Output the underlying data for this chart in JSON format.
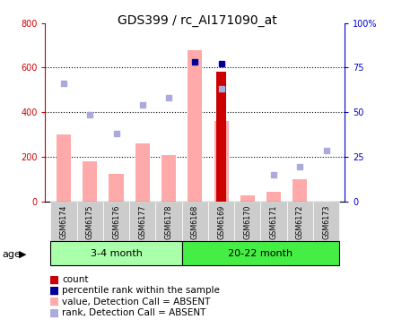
{
  "title": "GDS399 / rc_AI171090_at",
  "samples": [
    "GSM6174",
    "GSM6175",
    "GSM6176",
    "GSM6177",
    "GSM6178",
    "GSM6168",
    "GSM6169",
    "GSM6170",
    "GSM6171",
    "GSM6172",
    "GSM6173"
  ],
  "value_absent": [
    300,
    180,
    125,
    260,
    210,
    680,
    360,
    30,
    45,
    100,
    null
  ],
  "rank_absent_left_scale": [
    530,
    390,
    305,
    435,
    465,
    null,
    505,
    null,
    120,
    155,
    230
  ],
  "count_bar_val": [
    null,
    null,
    null,
    null,
    null,
    null,
    580,
    null,
    null,
    null,
    null
  ],
  "percentile_bar_val": [
    null,
    null,
    null,
    null,
    null,
    680,
    null,
    null,
    null,
    null,
    null
  ],
  "count_marker_left": [
    null,
    null,
    null,
    null,
    null,
    null,
    620,
    null,
    null,
    null,
    null
  ],
  "percentile_marker_left": [
    null,
    null,
    null,
    null,
    null,
    625,
    null,
    null,
    null,
    null,
    null
  ],
  "ylim_left": [
    0,
    800
  ],
  "ylim_right": [
    0,
    100
  ],
  "yticks_left": [
    0,
    200,
    400,
    600,
    800
  ],
  "yticks_right": [
    0,
    25,
    50,
    75,
    100
  ],
  "yticklabels_right": [
    "0",
    "25",
    "50",
    "75",
    "100%"
  ],
  "color_count_bar": "#cc0000",
  "color_rank_absent": "#aaaadd",
  "color_value_absent": "#ffaaaa",
  "color_percentile_marker": "#000099",
  "bg_plot": "#ffffff",
  "bg_sample_label": "#cccccc",
  "bg_group_34": "#aaffaa",
  "bg_group_2022": "#44ee44",
  "left_axis_color": "#cc0000",
  "right_axis_color": "#0000cc",
  "bar_width": 0.55,
  "title_fontsize": 10,
  "tick_fontsize": 7,
  "label_fontsize": 5.8,
  "legend_fontsize": 7.5,
  "group_fontsize": 8,
  "age_fontsize": 8,
  "groups_def": [
    {
      "label": "3-4 month",
      "start": 0,
      "end": 4
    },
    {
      "label": "20-22 month",
      "start": 5,
      "end": 10
    }
  ],
  "group_colors": [
    "#aaffaa",
    "#44ee44"
  ],
  "gridline_vals": [
    200,
    400,
    600
  ]
}
